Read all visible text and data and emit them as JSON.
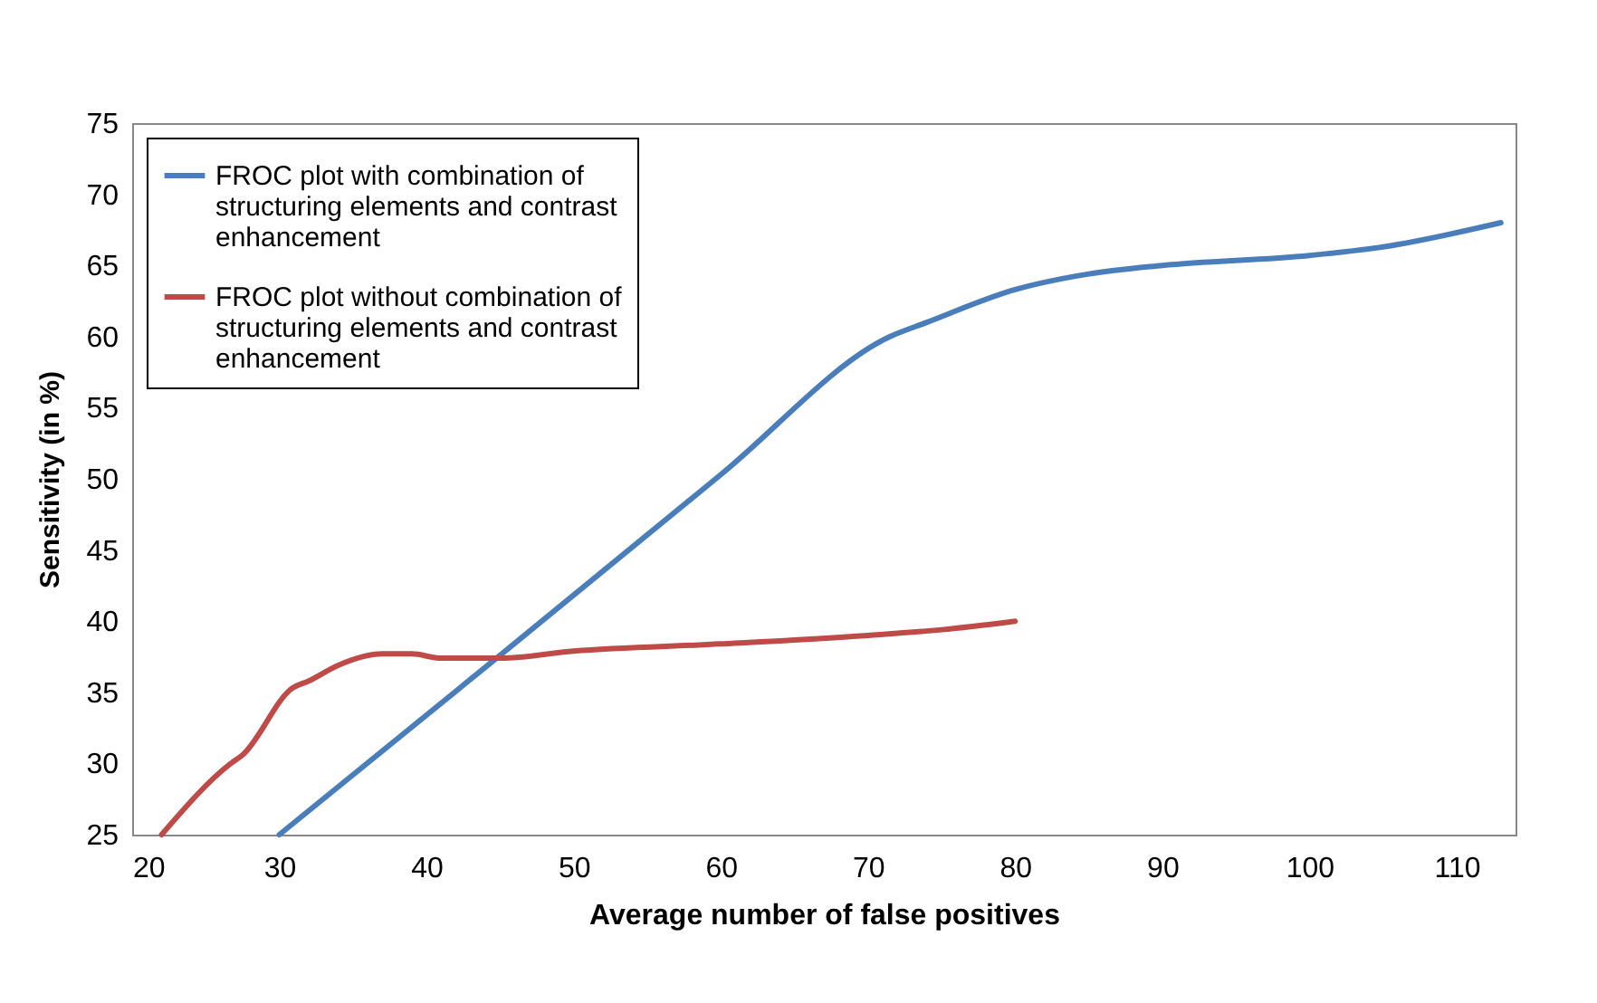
{
  "chart_data": {
    "type": "line",
    "xlabel": "Average number of false positives",
    "ylabel": "Sensitivity (in %)",
    "xlim": [
      20,
      114
    ],
    "xticks": [
      20,
      30,
      40,
      50,
      60,
      70,
      80,
      90,
      100,
      110
    ],
    "ylim": [
      25,
      75
    ],
    "yticks": [
      25,
      30,
      35,
      40,
      45,
      50,
      55,
      60,
      65,
      70,
      75
    ],
    "grid": false,
    "legend": "top left",
    "marker": "none",
    "line_style": "solid",
    "series": [
      {
        "name": "FROC plot with combination of structuring elements and contrast enhancement",
        "color": "#4a7ebb",
        "x": [
          30,
          45,
          60,
          71.5,
          74,
          80,
          85,
          90,
          100,
          105,
          113
        ],
        "values": [
          25,
          37.6,
          50.3,
          60,
          61,
          63.3,
          64.4,
          65,
          65.7,
          66.3,
          68
        ]
      },
      {
        "name": "FROC plot without combination of structuring elements and contrast enhancement",
        "color": "#be4b48",
        "x": [
          22,
          26.7,
          27.5,
          30.9,
          32,
          34,
          37,
          39,
          41,
          45,
          50,
          60,
          70,
          75,
          80
        ],
        "values": [
          25,
          30,
          30.6,
          35.3,
          35.8,
          36.9,
          37.7,
          37.7,
          37.4,
          37.4,
          37.9,
          38.4,
          39,
          39.4,
          40
        ]
      }
    ]
  }
}
